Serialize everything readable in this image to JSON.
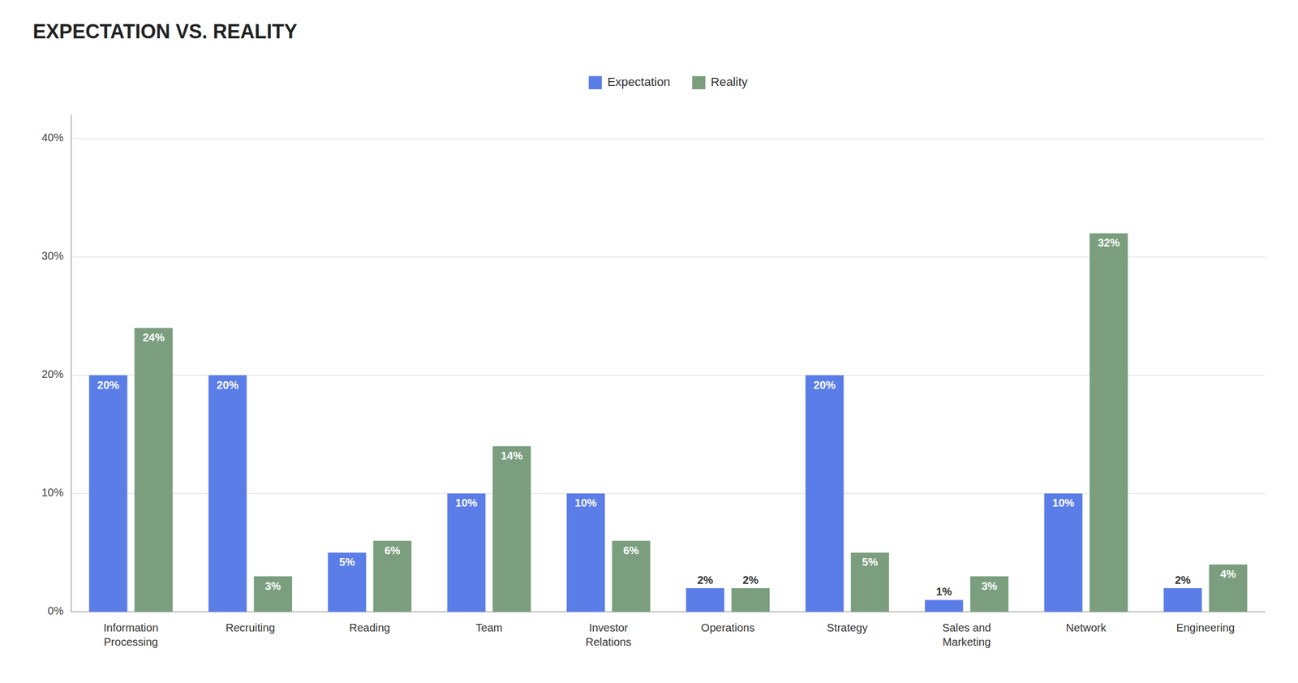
{
  "chart_data": {
    "type": "bar",
    "title": "EXPECTATION VS. REALITY",
    "categories": [
      "Information\nProcessing",
      "Recruiting",
      "Reading",
      "Team",
      "Investor\nRelations",
      "Operations",
      "Strategy",
      "Sales and\nMarketing",
      "Network",
      "Engineering"
    ],
    "series": [
      {
        "name": "Expectation",
        "color": "#5b7de8",
        "values": [
          20,
          20,
          5,
          10,
          10,
          2,
          20,
          1,
          10,
          2
        ],
        "value_labels": [
          "20%",
          "20%",
          "5%",
          "10%",
          "10%",
          "2%",
          "20%",
          "1%",
          "10%",
          "2%"
        ]
      },
      {
        "name": "Reality",
        "color": "#7a9e7e",
        "values": [
          24,
          3,
          6,
          14,
          6,
          2,
          5,
          3,
          32,
          4
        ],
        "value_labels": [
          "24%",
          "3%",
          "6%",
          "14%",
          "6%",
          "2%",
          "5%",
          "3%",
          "32%",
          "4%"
        ]
      }
    ],
    "ylim": [
      0,
      42
    ],
    "yticks": [
      {
        "value": 0,
        "label": "0%"
      },
      {
        "value": 10,
        "label": "10%"
      },
      {
        "value": 20,
        "label": "20%"
      },
      {
        "value": 30,
        "label": "30%"
      },
      {
        "value": 40,
        "label": "40%"
      }
    ],
    "grid": true,
    "legend": "upper center",
    "data_labels": true
  }
}
